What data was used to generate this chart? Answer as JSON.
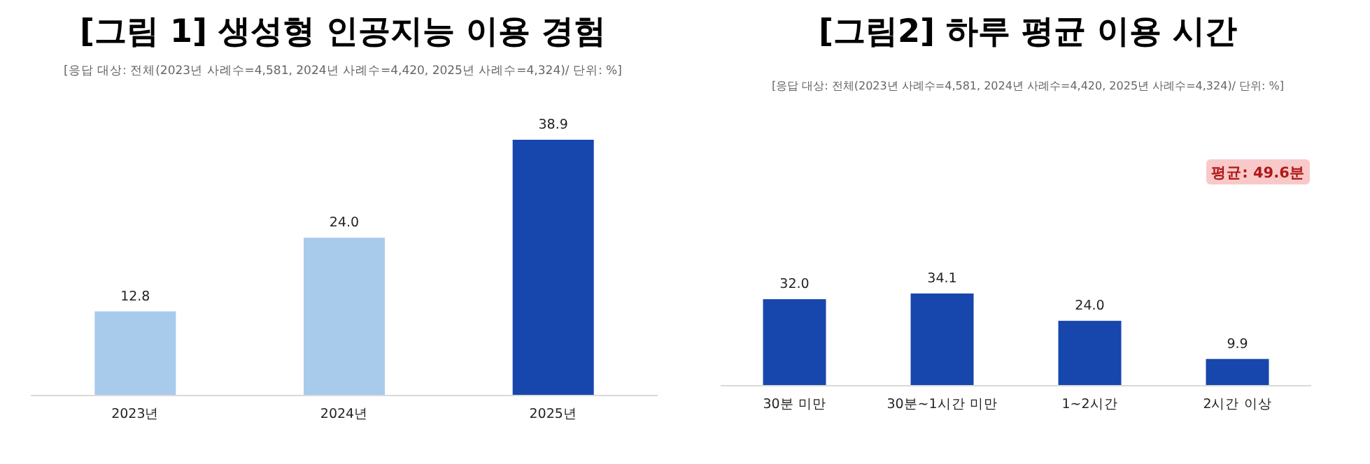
{
  "chart_data": [
    {
      "type": "bar",
      "title": "[그림 1] 생성형 인공지능 이용 경험",
      "subtitle": "[응답 대상: 전체(2023년 사례수=4,581, 2024년 사례수=4,420, 2025년 사례수=4,324)/ 단위: %]",
      "categories": [
        "2023년",
        "2024년",
        "2025년"
      ],
      "values": [
        12.8,
        24.0,
        38.9
      ],
      "colors": [
        "#a9cbeb",
        "#a9cbeb",
        "#1746ad"
      ],
      "value_labels": [
        "12.8",
        "24.0",
        "38.9"
      ]
    },
    {
      "type": "bar",
      "title": "[그림2] 하루 평균 이용 시간",
      "subtitle": "[응답 대상: 전체(2023년 사례수=4,581, 2024년 사례수=4,420, 2025년 사례수=4,324)/ 단위: %]",
      "categories": [
        "30분 미만",
        "30분~1시간 미만",
        "1~2시간",
        "2시간 이상"
      ],
      "values": [
        32.0,
        34.1,
        24.0,
        9.9
      ],
      "color": "#1746ad",
      "value_labels": [
        "32.0",
        "34.1",
        "24.0",
        "9.9"
      ],
      "annotations": [
        "평균: 49.6분"
      ]
    }
  ]
}
